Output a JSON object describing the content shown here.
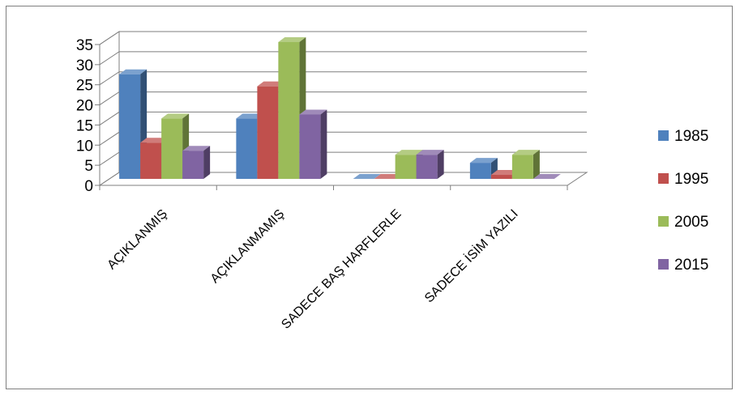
{
  "chart_data": {
    "type": "bar",
    "three_d": true,
    "categories": [
      "AÇIKLANMIŞ",
      "AÇIKLANMAMIŞ",
      "SADECE BAŞ HARFLERLE",
      "SADECE İSİM YAZILI"
    ],
    "series": [
      {
        "name": "1985",
        "values": [
          26,
          15,
          0,
          4
        ],
        "color": "#4f81bd"
      },
      {
        "name": "1995",
        "values": [
          9,
          23,
          0,
          1
        ],
        "color": "#c0504d"
      },
      {
        "name": "2005",
        "values": [
          15,
          34,
          6,
          6
        ],
        "color": "#9bbb59"
      },
      {
        "name": "2015",
        "values": [
          7,
          16,
          6,
          0
        ],
        "color": "#8064a2"
      }
    ],
    "ylim": [
      0,
      35
    ],
    "yticks": [
      0,
      5,
      10,
      15,
      20,
      25,
      30,
      35
    ],
    "ytick_labels": [
      "0",
      "5",
      "10",
      "15",
      "20",
      "25",
      "30",
      "35"
    ],
    "grid": true,
    "legend": "right"
  }
}
